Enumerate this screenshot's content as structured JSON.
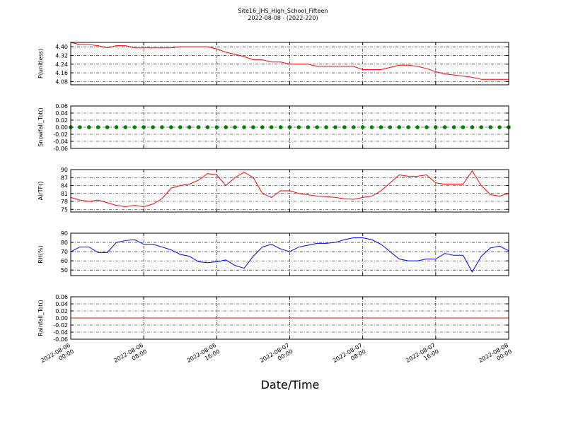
{
  "chart_data": [
    {
      "type": "line",
      "title": "Site16_JHS_High_School_Fifteen",
      "subtitle": "2022-08-08 - (2022-220)",
      "ylabel": "P(unitless)",
      "x": [
        "2022-08-06 00:00",
        "2022-08-06 01:00",
        "2022-08-06 02:00",
        "2022-08-06 03:00",
        "2022-08-06 04:00",
        "2022-08-06 05:00",
        "2022-08-06 06:00",
        "2022-08-06 07:00",
        "2022-08-06 08:00",
        "2022-08-06 09:00",
        "2022-08-06 10:00",
        "2022-08-06 11:00",
        "2022-08-06 12:00",
        "2022-08-06 13:00",
        "2022-08-06 14:00",
        "2022-08-06 15:00",
        "2022-08-06 16:00",
        "2022-08-06 17:00",
        "2022-08-06 18:00",
        "2022-08-06 19:00",
        "2022-08-06 20:00",
        "2022-08-06 21:00",
        "2022-08-06 22:00",
        "2022-08-06 23:00",
        "2022-08-07 00:00",
        "2022-08-07 01:00",
        "2022-08-07 02:00",
        "2022-08-07 03:00",
        "2022-08-07 04:00",
        "2022-08-07 05:00",
        "2022-08-07 06:00",
        "2022-08-07 07:00",
        "2022-08-07 08:00",
        "2022-08-07 09:00",
        "2022-08-07 10:00",
        "2022-08-07 11:00",
        "2022-08-07 12:00",
        "2022-08-07 13:00",
        "2022-08-07 14:00",
        "2022-08-07 15:00",
        "2022-08-07 16:00",
        "2022-08-07 17:00",
        "2022-08-07 18:00",
        "2022-08-07 19:00",
        "2022-08-07 20:00",
        "2022-08-07 21:00",
        "2022-08-07 22:00",
        "2022-08-07 23:00",
        "2022-08-08 00:00"
      ],
      "series": [
        {
          "color": "#ff0000",
          "values": [
            4.44,
            4.42,
            4.42,
            4.41,
            4.39,
            4.41,
            4.41,
            4.39,
            4.39,
            4.39,
            4.39,
            4.39,
            4.4,
            4.4,
            4.4,
            4.4,
            4.38,
            4.35,
            4.33,
            4.31,
            4.28,
            4.28,
            4.26,
            4.26,
            4.24,
            4.24,
            4.24,
            4.22,
            4.22,
            4.22,
            4.22,
            4.22,
            4.19,
            4.19,
            4.19,
            4.21,
            4.23,
            4.23,
            4.22,
            4.2,
            4.17,
            4.15,
            4.14,
            4.13,
            4.12,
            4.1,
            4.1,
            4.1,
            4.1
          ]
        }
      ],
      "xlim": [
        "2022-08-06 00:00",
        "2022-08-08 00:00"
      ],
      "xticks": [
        "2022-08-06 00:00",
        "2022-08-06 08:00",
        "2022-08-06 16:00",
        "2022-08-07 00:00",
        "2022-08-07 08:00",
        "2022-08-07 16:00",
        "2022-08-08 00:00"
      ],
      "ylim": [
        4.05,
        4.44
      ],
      "yticks": [
        4.08,
        4.16,
        4.24,
        4.32,
        {
          "value": 4.4,
          "label": "4.40"
        }
      ],
      "grid": true
    },
    {
      "type": "scatter",
      "ylabel": "Snowfall_Tot()",
      "x": [
        "2022-08-06 00:00",
        "2022-08-06 01:00",
        "2022-08-06 02:00",
        "2022-08-06 03:00",
        "2022-08-06 04:00",
        "2022-08-06 05:00",
        "2022-08-06 06:00",
        "2022-08-06 07:00",
        "2022-08-06 08:00",
        "2022-08-06 09:00",
        "2022-08-06 10:00",
        "2022-08-06 11:00",
        "2022-08-06 12:00",
        "2022-08-06 13:00",
        "2022-08-06 14:00",
        "2022-08-06 15:00",
        "2022-08-06 16:00",
        "2022-08-06 17:00",
        "2022-08-06 18:00",
        "2022-08-06 19:00",
        "2022-08-06 20:00",
        "2022-08-06 21:00",
        "2022-08-06 22:00",
        "2022-08-06 23:00",
        "2022-08-07 00:00",
        "2022-08-07 01:00",
        "2022-08-07 02:00",
        "2022-08-07 03:00",
        "2022-08-07 04:00",
        "2022-08-07 05:00",
        "2022-08-07 06:00",
        "2022-08-07 07:00",
        "2022-08-07 08:00",
        "2022-08-07 09:00",
        "2022-08-07 10:00",
        "2022-08-07 11:00",
        "2022-08-07 12:00",
        "2022-08-07 13:00",
        "2022-08-07 14:00",
        "2022-08-07 15:00",
        "2022-08-07 16:00",
        "2022-08-07 17:00",
        "2022-08-07 18:00",
        "2022-08-07 19:00",
        "2022-08-07 20:00",
        "2022-08-07 21:00",
        "2022-08-07 22:00",
        "2022-08-07 23:00",
        "2022-08-08 00:00"
      ],
      "series": [
        {
          "color": "#008000",
          "values": [
            0,
            0,
            0,
            0,
            0,
            0,
            0,
            0,
            0,
            0,
            0,
            0,
            0,
            0,
            0,
            0,
            0,
            0,
            0,
            0,
            0,
            0,
            0,
            0,
            0,
            0,
            0,
            0,
            0,
            0,
            0,
            0,
            0,
            0,
            0,
            0,
            0,
            0,
            0,
            0,
            0,
            0,
            0,
            0,
            0,
            0,
            0,
            0,
            0
          ]
        }
      ],
      "xlim": [
        "2022-08-06 00:00",
        "2022-08-08 00:00"
      ],
      "xticks": [
        "2022-08-06 00:00",
        "2022-08-06 08:00",
        "2022-08-06 16:00",
        "2022-08-07 00:00",
        "2022-08-07 08:00",
        "2022-08-07 16:00",
        "2022-08-08 00:00"
      ],
      "ylim": [
        -0.06,
        0.06
      ],
      "yticks": [
        -0.06,
        -0.04,
        -0.02,
        {
          "value": 0,
          "label": "0.00"
        },
        0.02,
        0.04,
        0.06
      ],
      "grid": true
    },
    {
      "type": "line",
      "ylabel": "AirTF()",
      "x": [
        "2022-08-06 00:00",
        "2022-08-06 01:00",
        "2022-08-06 02:00",
        "2022-08-06 03:00",
        "2022-08-06 04:00",
        "2022-08-06 05:00",
        "2022-08-06 06:00",
        "2022-08-06 07:00",
        "2022-08-06 08:00",
        "2022-08-06 09:00",
        "2022-08-06 10:00",
        "2022-08-06 11:00",
        "2022-08-06 12:00",
        "2022-08-06 13:00",
        "2022-08-06 14:00",
        "2022-08-06 15:00",
        "2022-08-06 16:00",
        "2022-08-06 17:00",
        "2022-08-06 18:00",
        "2022-08-06 19:00",
        "2022-08-06 20:00",
        "2022-08-06 21:00",
        "2022-08-06 22:00",
        "2022-08-06 23:00",
        "2022-08-07 00:00",
        "2022-08-07 01:00",
        "2022-08-07 02:00",
        "2022-08-07 03:00",
        "2022-08-07 04:00",
        "2022-08-07 05:00",
        "2022-08-07 06:00",
        "2022-08-07 07:00",
        "2022-08-07 08:00",
        "2022-08-07 09:00",
        "2022-08-07 10:00",
        "2022-08-07 11:00",
        "2022-08-07 12:00",
        "2022-08-07 13:00",
        "2022-08-07 14:00",
        "2022-08-07 15:00",
        "2022-08-07 16:00",
        "2022-08-07 17:00",
        "2022-08-07 18:00",
        "2022-08-07 19:00",
        "2022-08-07 20:00",
        "2022-08-07 21:00",
        "2022-08-07 22:00",
        "2022-08-07 23:00",
        "2022-08-08 00:00"
      ],
      "series": [
        {
          "color": "#ff0000",
          "values": [
            79.5,
            78.5,
            78,
            78.5,
            77.5,
            76.5,
            76,
            76.5,
            76,
            77,
            79,
            83,
            84,
            84.5,
            86,
            88.5,
            88,
            84,
            87,
            89,
            87,
            81,
            79.5,
            82,
            82,
            81,
            80.5,
            80,
            79.8,
            79.5,
            79,
            78.8,
            79.5,
            80,
            82,
            85,
            88,
            87.5,
            87.5,
            88,
            85,
            84.5,
            84.5,
            84.5,
            89.5,
            84,
            80.5,
            80,
            81
          ]
        }
      ],
      "xlim": [
        "2022-08-06 00:00",
        "2022-08-08 00:00"
      ],
      "xticks": [
        "2022-08-06 00:00",
        "2022-08-06 08:00",
        "2022-08-06 16:00",
        "2022-08-07 00:00",
        "2022-08-07 08:00",
        "2022-08-07 16:00",
        "2022-08-08 00:00"
      ],
      "ylim": [
        74,
        90
      ],
      "yticks": [
        75,
        78,
        81,
        84,
        87,
        90
      ],
      "grid": true
    },
    {
      "type": "line",
      "ylabel": "RH(%)",
      "x": [
        "2022-08-06 00:00",
        "2022-08-06 01:00",
        "2022-08-06 02:00",
        "2022-08-06 03:00",
        "2022-08-06 04:00",
        "2022-08-06 05:00",
        "2022-08-06 06:00",
        "2022-08-06 07:00",
        "2022-08-06 08:00",
        "2022-08-06 09:00",
        "2022-08-06 10:00",
        "2022-08-06 11:00",
        "2022-08-06 12:00",
        "2022-08-06 13:00",
        "2022-08-06 14:00",
        "2022-08-06 15:00",
        "2022-08-06 16:00",
        "2022-08-06 17:00",
        "2022-08-06 18:00",
        "2022-08-06 19:00",
        "2022-08-06 20:00",
        "2022-08-06 21:00",
        "2022-08-06 22:00",
        "2022-08-06 23:00",
        "2022-08-07 00:00",
        "2022-08-07 01:00",
        "2022-08-07 02:00",
        "2022-08-07 03:00",
        "2022-08-07 04:00",
        "2022-08-07 05:00",
        "2022-08-07 06:00",
        "2022-08-07 07:00",
        "2022-08-07 08:00",
        "2022-08-07 09:00",
        "2022-08-07 10:00",
        "2022-08-07 11:00",
        "2022-08-07 12:00",
        "2022-08-07 13:00",
        "2022-08-07 14:00",
        "2022-08-07 15:00",
        "2022-08-07 16:00",
        "2022-08-07 17:00",
        "2022-08-07 18:00",
        "2022-08-07 19:00",
        "2022-08-07 20:00",
        "2022-08-07 21:00",
        "2022-08-07 22:00",
        "2022-08-07 23:00",
        "2022-08-08 00:00"
      ],
      "series": [
        {
          "color": "#0000ff",
          "values": [
            70,
            75,
            75,
            69,
            69,
            80,
            82,
            83,
            78,
            78,
            75,
            72,
            67,
            65,
            59,
            58,
            59,
            61,
            55,
            52,
            65,
            75,
            78,
            73,
            70,
            75,
            77,
            79,
            79,
            80,
            83,
            85,
            85,
            83,
            78,
            70,
            62,
            60,
            60,
            62,
            62,
            68,
            66,
            66,
            48,
            65,
            74,
            76,
            71
          ]
        }
      ],
      "xlim": [
        "2022-08-06 00:00",
        "2022-08-08 00:00"
      ],
      "xticks": [
        "2022-08-06 00:00",
        "2022-08-06 08:00",
        "2022-08-06 16:00",
        "2022-08-07 00:00",
        "2022-08-07 08:00",
        "2022-08-07 16:00",
        "2022-08-08 00:00"
      ],
      "ylim": [
        44,
        90
      ],
      "yticks": [
        50,
        60,
        70,
        80,
        90
      ],
      "grid": true
    },
    {
      "type": "line",
      "ylabel": "Rainfall_Tot()",
      "xlabel": "Date/Time",
      "x": [
        "2022-08-06 00:00",
        "2022-08-06 01:00",
        "2022-08-06 02:00",
        "2022-08-06 03:00",
        "2022-08-06 04:00",
        "2022-08-06 05:00",
        "2022-08-06 06:00",
        "2022-08-06 07:00",
        "2022-08-06 08:00",
        "2022-08-06 09:00",
        "2022-08-06 10:00",
        "2022-08-06 11:00",
        "2022-08-06 12:00",
        "2022-08-06 13:00",
        "2022-08-06 14:00",
        "2022-08-06 15:00",
        "2022-08-06 16:00",
        "2022-08-06 17:00",
        "2022-08-06 18:00",
        "2022-08-06 19:00",
        "2022-08-06 20:00",
        "2022-08-06 21:00",
        "2022-08-06 22:00",
        "2022-08-06 23:00",
        "2022-08-07 00:00",
        "2022-08-07 01:00",
        "2022-08-07 02:00",
        "2022-08-07 03:00",
        "2022-08-07 04:00",
        "2022-08-07 05:00",
        "2022-08-07 06:00",
        "2022-08-07 07:00",
        "2022-08-07 08:00",
        "2022-08-07 09:00",
        "2022-08-07 10:00",
        "2022-08-07 11:00",
        "2022-08-07 12:00",
        "2022-08-07 13:00",
        "2022-08-07 14:00",
        "2022-08-07 15:00",
        "2022-08-07 16:00",
        "2022-08-07 17:00",
        "2022-08-07 18:00",
        "2022-08-07 19:00",
        "2022-08-07 20:00",
        "2022-08-07 21:00",
        "2022-08-07 22:00",
        "2022-08-07 23:00",
        "2022-08-08 00:00"
      ],
      "series": [
        {
          "color": "#ff0000",
          "values": [
            0,
            0,
            0,
            0,
            0,
            0,
            0,
            0,
            0,
            0,
            0,
            0,
            0,
            0,
            0,
            0,
            0,
            0,
            0,
            0,
            0,
            0,
            0,
            0,
            0,
            0,
            0,
            0,
            0,
            0,
            0,
            0,
            0,
            0,
            0,
            0,
            0,
            0,
            0,
            0,
            0,
            0,
            0,
            0,
            0,
            0,
            0,
            0,
            0
          ]
        }
      ],
      "xlim": [
        "2022-08-06 00:00",
        "2022-08-08 00:00"
      ],
      "xticks": [
        "2022-08-06 00:00",
        "2022-08-06 08:00",
        "2022-08-06 16:00",
        "2022-08-07 00:00",
        "2022-08-07 08:00",
        "2022-08-07 16:00",
        "2022-08-08 00:00"
      ],
      "ylim": [
        -0.06,
        0.06
      ],
      "yticks": [
        -0.06,
        -0.04,
        -0.02,
        {
          "value": 0,
          "label": "0.00"
        },
        0.02,
        0.04,
        0.06
      ],
      "grid": true
    }
  ]
}
